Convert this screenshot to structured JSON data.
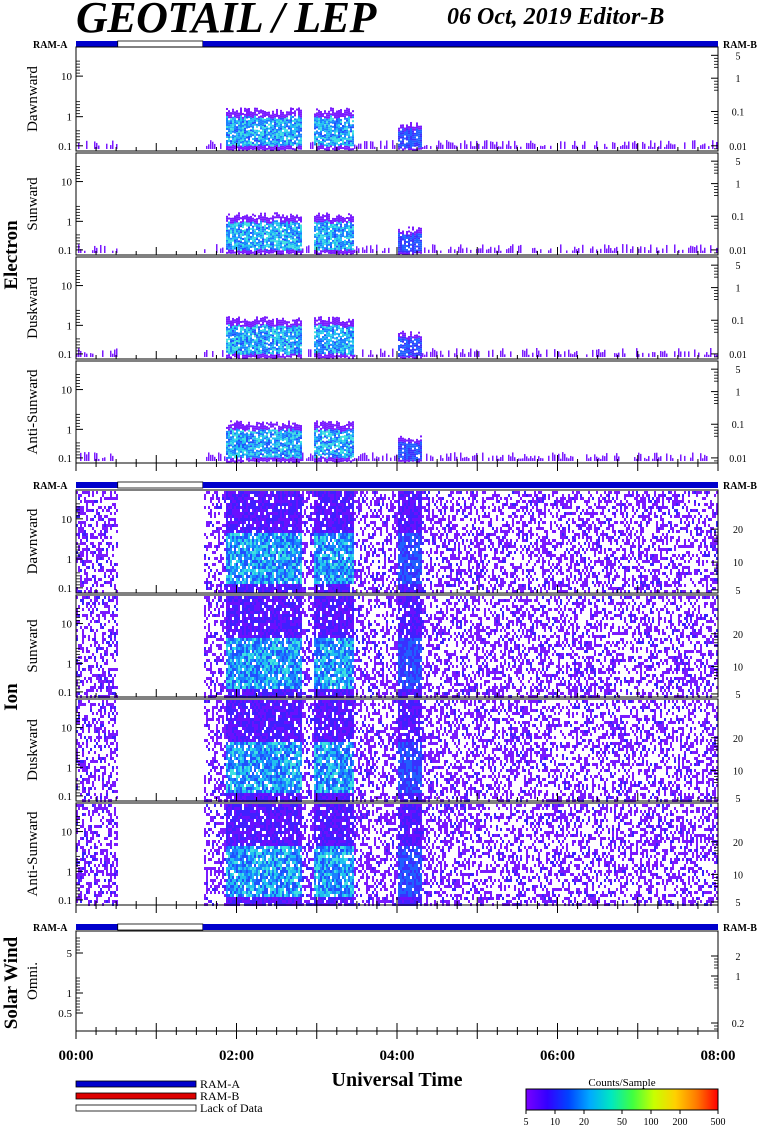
{
  "header": {
    "title": "GEOTAIL / LEP",
    "date_label": "06 Oct, 2019   Editor-B"
  },
  "colors": {
    "ram_a": "#0000cc",
    "ram_b": "#dd0000",
    "lack_of_data": "#ffffff",
    "colorbar_stops": [
      "#7a00ff",
      "#3300ff",
      "#0044ff",
      "#00aaff",
      "#00e8c0",
      "#40ff40",
      "#c8ff00",
      "#ffd000",
      "#ff7a00",
      "#ff0000"
    ]
  },
  "chart_data": {
    "type": "heatmap",
    "x_axis": {
      "label": "Universal Time",
      "range_hours": [
        0,
        8
      ],
      "tick_labels": [
        "00:00",
        "02:00",
        "04:00",
        "06:00",
        "08:00"
      ]
    },
    "group_labels": [
      "Electron",
      "Ion",
      "Solar Wind"
    ],
    "ram_labels": {
      "left": "RAM-A",
      "right": "RAM-B"
    },
    "ram_bars": [
      {
        "section": "Electron",
        "missing_range_hours": [
          0.52,
          1.58
        ]
      },
      {
        "section": "Ion",
        "missing_range_hours": [
          0.52,
          1.58
        ]
      },
      {
        "section": "Solar Wind",
        "missing_range_hours": [
          0.52,
          1.58
        ]
      }
    ],
    "panels": [
      {
        "group": "Electron",
        "label": "Dawnward",
        "left_ticks": [
          "10",
          "1",
          "0.1"
        ],
        "right_ticks": [
          "5",
          "1",
          "0.1",
          "0.01"
        ],
        "data_start_hours": 0.0,
        "gap_hours": [
          0.52,
          1.58
        ]
      },
      {
        "group": "Electron",
        "label": "Sunward",
        "left_ticks": [
          "10",
          "1",
          "0.1"
        ],
        "right_ticks": [
          "5",
          "1",
          "0.1",
          "0.01"
        ],
        "data_start_hours": 0.0,
        "gap_hours": [
          0.52,
          1.58
        ]
      },
      {
        "group": "Electron",
        "label": "Duskward",
        "left_ticks": [
          "10",
          "1",
          "0.1"
        ],
        "right_ticks": [
          "5",
          "1",
          "0.1",
          "0.01"
        ],
        "data_start_hours": 0.0,
        "gap_hours": [
          0.52,
          1.58
        ]
      },
      {
        "group": "Electron",
        "label": "Anti-Sunward",
        "left_ticks": [
          "10",
          "1",
          "0.1"
        ],
        "right_ticks": [
          "5",
          "1",
          "0.1",
          "0.01"
        ],
        "data_start_hours": 0.0,
        "gap_hours": [
          0.52,
          1.58
        ]
      },
      {
        "group": "Ion",
        "label": "Dawnward",
        "left_ticks": [
          "10",
          "1",
          "0.1"
        ],
        "right_ticks": [
          "20",
          "10",
          "5"
        ],
        "data_start_hours": 0.0,
        "gap_hours": [
          0.52,
          1.58
        ]
      },
      {
        "group": "Ion",
        "label": "Sunward",
        "left_ticks": [
          "10",
          "1",
          "0.1"
        ],
        "right_ticks": [
          "20",
          "10",
          "5"
        ],
        "data_start_hours": 0.0,
        "gap_hours": [
          0.52,
          1.58
        ]
      },
      {
        "group": "Ion",
        "label": "Duskward",
        "left_ticks": [
          "10",
          "1",
          "0.1"
        ],
        "right_ticks": [
          "20",
          "10",
          "5"
        ],
        "data_start_hours": 0.0,
        "gap_hours": [
          0.52,
          1.58
        ]
      },
      {
        "group": "Ion",
        "label": "Anti-Sunward",
        "left_ticks": [
          "10",
          "1",
          "0.1"
        ],
        "right_ticks": [
          "20",
          "10",
          "5"
        ],
        "data_start_hours": 0.0,
        "gap_hours": [
          0.52,
          1.58
        ]
      },
      {
        "group": "Solar Wind",
        "label": "Omni.",
        "left_ticks": [
          "5",
          "1",
          "0.5"
        ],
        "right_ticks": [
          "2",
          "1",
          "0.2"
        ],
        "data_start_hours": null,
        "gap_hours": null
      }
    ],
    "enhancement_intervals_hours": [
      {
        "start": 1.85,
        "end": 2.8,
        "level": "high"
      },
      {
        "start": 2.95,
        "end": 3.45,
        "level": "high"
      },
      {
        "start": 4.0,
        "end": 4.3,
        "level": "medium"
      }
    ],
    "legend": {
      "items": [
        "RAM-A",
        "RAM-B",
        "Lack of Data"
      ]
    },
    "colorbar": {
      "title": "Counts/Sample",
      "tick_labels": [
        "5",
        "10",
        "20",
        "50",
        "100",
        "200",
        "500"
      ]
    }
  }
}
